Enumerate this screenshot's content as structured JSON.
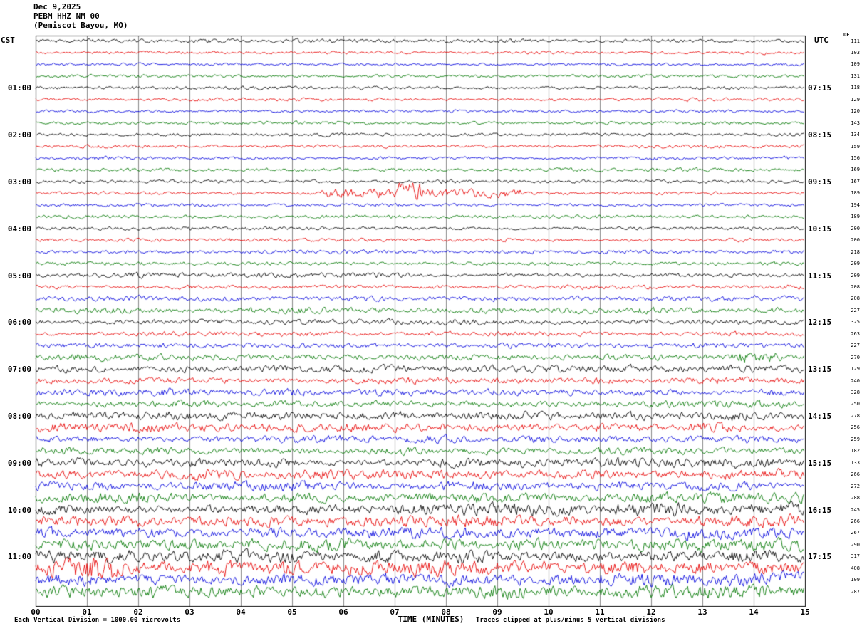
{
  "header": {
    "date": "Dec 9,2025",
    "station": "PEBM HHZ NM 00",
    "location": "(Pemiscot Bayou, MO)"
  },
  "axes": {
    "left_timezone": "CST",
    "right_timezone": "UTC",
    "right_column_header": "DF",
    "xlabel": "TIME (MINUTES)",
    "x_ticks": [
      "00",
      "01",
      "02",
      "03",
      "04",
      "05",
      "06",
      "07",
      "08",
      "09",
      "10",
      "11",
      "12",
      "13",
      "14",
      "15"
    ]
  },
  "footer": {
    "left_note": "Each Vertical Division = 1000.00 microvolts",
    "right_note": "Traces clipped at plus/minus 5 vertical divisions"
  },
  "chart_data": {
    "type": "line",
    "title": "PEBM HHZ NM 00 (Pemiscot Bayou, MO) helicorder, Dec 9,2025",
    "xlabel": "TIME (MINUTES)",
    "x_range_minutes": [
      0,
      15
    ],
    "minutes_per_line": 15,
    "lines_per_hour": 4,
    "grid": true,
    "trace_colors": {
      "black": "#000000",
      "red": "#e60000",
      "blue": "#0000dd",
      "green": "#007700"
    },
    "rows": [
      {
        "left": "",
        "right": "",
        "df": "111",
        "color": "black",
        "amp": 2.2
      },
      {
        "left": "",
        "right": "",
        "df": "103",
        "color": "red",
        "amp": 1.6
      },
      {
        "left": "",
        "right": "",
        "df": "109",
        "color": "blue",
        "amp": 1.6
      },
      {
        "left": "",
        "right": "",
        "df": "131",
        "color": "green",
        "amp": 1.8
      },
      {
        "left": "01:00",
        "right": "07:15",
        "df": "118",
        "color": "black",
        "amp": 2.0
      },
      {
        "left": "",
        "right": "",
        "df": "129",
        "color": "red",
        "amp": 1.8
      },
      {
        "left": "",
        "right": "",
        "df": "120",
        "color": "blue",
        "amp": 1.8
      },
      {
        "left": "",
        "right": "",
        "df": "143",
        "color": "green",
        "amp": 1.8
      },
      {
        "left": "02:00",
        "right": "08:15",
        "df": "134",
        "color": "black",
        "amp": 2.0
      },
      {
        "left": "",
        "right": "",
        "df": "159",
        "color": "red",
        "amp": 1.8
      },
      {
        "left": "",
        "right": "",
        "df": "156",
        "color": "blue",
        "amp": 2.0
      },
      {
        "left": "",
        "right": "",
        "df": "169",
        "color": "green",
        "amp": 2.0
      },
      {
        "left": "03:00",
        "right": "09:15",
        "df": "167",
        "color": "black",
        "amp": 2.2
      },
      {
        "left": "",
        "right": "",
        "df": "189",
        "color": "red",
        "amp": 2.0,
        "bursts": [
          {
            "start": 0.37,
            "end": 0.63,
            "mult": 3.0
          },
          {
            "start": 0.47,
            "end": 0.5,
            "mult": 6.5
          }
        ]
      },
      {
        "left": "",
        "right": "",
        "df": "194",
        "color": "blue",
        "amp": 2.0
      },
      {
        "left": "",
        "right": "",
        "df": "189",
        "color": "green",
        "amp": 2.0
      },
      {
        "left": "04:00",
        "right": "10:15",
        "df": "200",
        "color": "black",
        "amp": 2.0
      },
      {
        "left": "",
        "right": "",
        "df": "200",
        "color": "red",
        "amp": 2.0
      },
      {
        "left": "",
        "right": "",
        "df": "218",
        "color": "blue",
        "amp": 2.2
      },
      {
        "left": "",
        "right": "",
        "df": "209",
        "color": "green",
        "amp": 2.2
      },
      {
        "left": "05:00",
        "right": "11:15",
        "df": "209",
        "color": "black",
        "amp": 2.6
      },
      {
        "left": "",
        "right": "",
        "df": "208",
        "color": "red",
        "amp": 2.4
      },
      {
        "left": "",
        "right": "",
        "df": "208",
        "color": "blue",
        "amp": 3.0
      },
      {
        "left": "",
        "right": "",
        "df": "227",
        "color": "green",
        "amp": 3.6
      },
      {
        "left": "06:00",
        "right": "12:15",
        "df": "325",
        "color": "black",
        "amp": 3.0
      },
      {
        "left": "",
        "right": "",
        "df": "263",
        "color": "red",
        "amp": 2.6
      },
      {
        "left": "",
        "right": "",
        "df": "227",
        "color": "blue",
        "amp": 3.0
      },
      {
        "left": "",
        "right": "",
        "df": "270",
        "color": "green",
        "amp": 3.4,
        "bursts": [
          {
            "start": 0.9,
            "end": 0.97,
            "mult": 2.2
          }
        ]
      },
      {
        "left": "07:00",
        "right": "13:15",
        "df": "129",
        "color": "black",
        "amp": 4.5
      },
      {
        "left": "",
        "right": "",
        "df": "240",
        "color": "red",
        "amp": 4.0
      },
      {
        "left": "",
        "right": "",
        "df": "328",
        "color": "blue",
        "amp": 4.2
      },
      {
        "left": "",
        "right": "",
        "df": "250",
        "color": "green",
        "amp": 4.0
      },
      {
        "left": "08:00",
        "right": "14:15",
        "df": "278",
        "color": "black",
        "amp": 5.0
      },
      {
        "left": "",
        "right": "",
        "df": "256",
        "color": "red",
        "amp": 5.0
      },
      {
        "left": "",
        "right": "",
        "df": "259",
        "color": "blue",
        "amp": 4.5
      },
      {
        "left": "",
        "right": "",
        "df": "182",
        "color": "green",
        "amp": 4.5
      },
      {
        "left": "09:00",
        "right": "15:15",
        "df": "133",
        "color": "black",
        "amp": 5.5
      },
      {
        "left": "",
        "right": "",
        "df": "266",
        "color": "red",
        "amp": 5.5
      },
      {
        "left": "",
        "right": "",
        "df": "272",
        "color": "blue",
        "amp": 5.5
      },
      {
        "left": "",
        "right": "",
        "df": "288",
        "color": "green",
        "amp": 6.0
      },
      {
        "left": "10:00",
        "right": "16:15",
        "df": "245",
        "color": "black",
        "amp": 7.0
      },
      {
        "left": "",
        "right": "",
        "df": "266",
        "color": "red",
        "amp": 6.5
      },
      {
        "left": "",
        "right": "",
        "df": "267",
        "color": "blue",
        "amp": 7.0
      },
      {
        "left": "",
        "right": "",
        "df": "290",
        "color": "green",
        "amp": 7.0
      },
      {
        "left": "11:00",
        "right": "17:15",
        "df": "317",
        "color": "black",
        "amp": 7.5
      },
      {
        "left": "",
        "right": "",
        "df": "408",
        "color": "red",
        "amp": 8.5,
        "bursts": [
          {
            "start": 0.02,
            "end": 0.1,
            "mult": 1.8
          }
        ]
      },
      {
        "left": "",
        "right": "",
        "df": "109",
        "color": "blue",
        "amp": 7.5
      },
      {
        "left": "",
        "right": "",
        "df": "287",
        "color": "green",
        "amp": 7.5
      }
    ]
  }
}
